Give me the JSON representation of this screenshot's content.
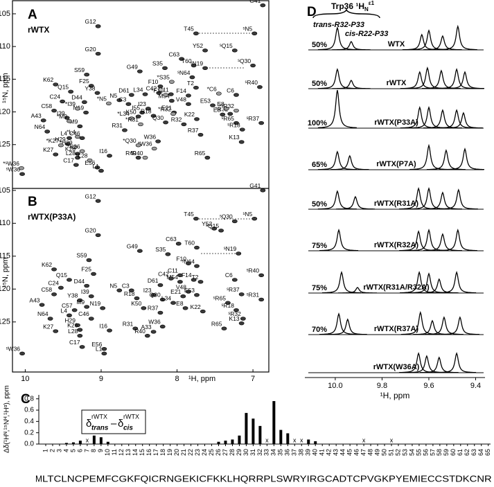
{
  "chart_data": [
    {
      "type": "hsqc",
      "label": "A",
      "subtitle": "rWTX",
      "ylabel": "¹⁵N, ppm",
      "xlim": [
        10.15,
        6.8
      ],
      "ylim": [
        103.1,
        131.7
      ],
      "yticks": [
        105,
        110,
        115,
        120,
        125
      ],
      "series": [
        {
          "color": "#e8251f",
          "labels": [
            "G41",
            "G12",
            "T45",
            "ˢN5",
            "G20",
            "Y52",
            "ˢQ15",
            "C63",
            "T60",
            "S35",
            "G49",
            "ˢQ30",
            "ˢN19",
            "ˢN64",
            "S59",
            "K62",
            "F25",
            "Y38",
            "Q15",
            "F10",
            "ˢR40",
            "T2",
            "C11",
            "F14",
            "C42",
            "L34",
            "D61",
            "N5",
            "C3",
            "D44",
            "C24",
            "C6",
            "M54",
            "V48",
            "I23",
            "N19",
            "C58",
            "E53",
            "E8",
            "ˢR32",
            "I39",
            "M9",
            "A43",
            "K50",
            "I55",
            "R18",
            "Q30",
            "R32",
            "ˢR65",
            "ˢR18",
            "ˢR37",
            "K22",
            "E21",
            "R31",
            "N64",
            "L4",
            "C46",
            "R37",
            "K13",
            "W36",
            "H29",
            "K27",
            "K26",
            "I16",
            "R40",
            "L28",
            "R65",
            "C17",
            "E56",
            "L1",
            "ˢW36"
          ],
          "x": [
            6.87,
            9.04,
            7.75,
            6.98,
            9.04,
            7.63,
            7.24,
            7.94,
            7.78,
            8.16,
            8.49,
            7.0,
            7.63,
            7.8,
            9.19,
            9.6,
            9.13,
            9.05,
            9.4,
            8.22,
            6.91,
            7.75,
            8.08,
            7.85,
            8.24,
            8.42,
            8.6,
            8.76,
            8.64,
            9.22,
            9.51,
            7.22,
            8.07,
            7.85,
            8.38,
            9.2,
            9.62,
            7.53,
            7.4,
            7.3,
            9.45,
            9.28,
            9.76,
            8.51,
            8.46,
            8.31,
            8.15,
            7.91,
            7.22,
            7.14,
            6.89,
            7.74,
            8.04,
            8.69,
            9.71,
            9.42,
            9.25,
            7.69,
            7.15,
            8.25,
            9.44,
            9.6,
            9.31,
            8.89,
            8.51,
            9.31,
            7.6,
            9.33,
            9.05,
            9.0,
            10.04
          ],
          "y": [
            103.7,
            106.9,
            108.0,
            108.0,
            111.1,
            110.6,
            110.6,
            111.9,
            112.9,
            113.3,
            113.8,
            112.9,
            113.3,
            114.7,
            114.3,
            115.8,
            116.0,
            117.1,
            116.9,
            116.1,
            116.2,
            116.3,
            117.3,
            117.5,
            117.1,
            117.3,
            117.4,
            118.2,
            118.8,
            118.5,
            118.4,
            117.4,
            118.3,
            118.8,
            119.5,
            120.1,
            119.8,
            119.0,
            120.4,
            120.3,
            120.9,
            122.2,
            121.3,
            120.7,
            120.1,
            120.6,
            121.6,
            121.9,
            121.7,
            122.7,
            121.7,
            121.1,
            120.1,
            122.8,
            123.0,
            124.0,
            124.0,
            123.5,
            124.6,
            124.5,
            124.9,
            126.5,
            126.4,
            126.7,
            127.0,
            127.0,
            127.0,
            128.1,
            128.5,
            129.0,
            129.5
          ]
        },
        {
          "color": "#2a9fd6",
          "labels": [
            "*S35",
            "*F10",
            "*C6",
            "*I39",
            "*N5",
            "E8",
            "*ˢR32",
            "*M9",
            "*L34",
            "*R32",
            "*R31",
            "*W36",
            "*Q30",
            "*H29",
            "*L4",
            "*K27",
            "*K26",
            "*R40",
            "*L28",
            "*ˢW36"
          ],
          "x": [
            8.07,
            8.15,
            7.45,
            9.31,
            8.9,
            7.35,
            7.22,
            9.42,
            8.6,
            8.05,
            8.48,
            8.3,
            8.51,
            9.35,
            9.31,
            9.53,
            9.25,
            8.42,
            9.15,
            10.05
          ],
          "y": [
            115.4,
            117.4,
            117.2,
            119.5,
            118.7,
            119.5,
            119.8,
            121.4,
            121.0,
            120.3,
            121.9,
            125.6,
            125.1,
            125.4,
            123.8,
            125.1,
            126.0,
            127.0,
            127.4,
            128.6
          ]
        }
      ]
    },
    {
      "type": "hsqc",
      "label": "B",
      "subtitle": "rWTX(P33A)",
      "xlabel": "¹H, ppm",
      "ylabel": "¹⁵N, ppm",
      "xlim": [
        10.15,
        6.8
      ],
      "ylim": [
        104.7,
        132.4
      ],
      "xticks": [
        10,
        9,
        8,
        7
      ],
      "yticks": [
        105,
        110,
        115,
        120,
        125
      ],
      "series": [
        {
          "color": "#111111",
          "labels": [
            "G41",
            "G12",
            "T45",
            "ˢN5",
            "G20",
            "Y52",
            "ˢQ30",
            "ˢQ15",
            "C63",
            "T60",
            "G49",
            "S35",
            "ˢN19",
            "S59",
            "ˢN64",
            "F10",
            "K62",
            "F25",
            "ˢR40",
            "C6",
            "F14",
            "T2",
            "C11",
            "M54",
            "C42",
            "Q15",
            "D61",
            "D44",
            "N5",
            "C3",
            "C24",
            "V48",
            "ˢR37",
            "E53",
            "C58",
            "Y38",
            "I39",
            "R18",
            "I23",
            "Q30",
            "L34",
            "E21",
            "ˢR31",
            "ˢR65",
            "A43",
            "N19",
            "M9",
            "R37",
            "E8",
            "K22",
            "ˢR18",
            "ˢR32",
            "K50",
            "N64",
            "L4",
            "C57",
            "C46",
            "K13",
            "W36",
            "R31",
            "R65",
            "H29",
            "A33",
            "I16",
            "K27",
            "K26",
            "R40",
            "L28",
            "C17",
            "E56",
            "L1",
            "ˢW36"
          ],
          "x": [
            6.87,
            9.04,
            7.75,
            6.98,
            9.04,
            7.51,
            7.24,
            7.42,
            7.98,
            7.74,
            8.49,
            8.12,
            7.19,
            9.16,
            7.74,
            7.85,
            9.62,
            9.1,
            6.89,
            7.24,
            7.78,
            7.69,
            7.96,
            7.96,
            8.08,
            9.42,
            8.22,
            9.19,
            8.76,
            8.6,
            9.53,
            7.85,
            7.15,
            7.74,
            9.62,
            9.28,
            9.13,
            8.53,
            8.31,
            8.19,
            8.05,
            7.92,
            6.89,
            7.33,
            9.78,
            8.98,
            9.19,
            8.22,
            7.89,
            7.66,
            7.22,
            7.13,
            8.44,
            9.67,
            9.42,
            9.35,
            9.13,
            7.15,
            8.19,
            8.55,
            7.38,
            9.31,
            8.31,
            8.89,
            9.6,
            9.28,
            8.39,
            9.28,
            9.25,
            8.96,
            8.96,
            10.04
          ],
          "y": [
            105.0,
            106.6,
            109.3,
            109.3,
            111.8,
            110.8,
            109.7,
            111.1,
            113.1,
            113.7,
            114.2,
            114.7,
            114.6,
            115.6,
            116.5,
            116.1,
            117.0,
            117.7,
            117.9,
            118.6,
            118.6,
            118.9,
            117.9,
            118.9,
            118.4,
            118.6,
            119.4,
            119.5,
            120.2,
            120.2,
            119.8,
            120.4,
            120.8,
            120.9,
            120.8,
            121.7,
            121.1,
            121.4,
            120.9,
            121.6,
            122.1,
            121.1,
            121.6,
            122.1,
            122.4,
            122.9,
            122.7,
            123.6,
            122.9,
            123.4,
            123.2,
            124.5,
            122.9,
            124.5,
            124.0,
            123.2,
            124.5,
            125.2,
            125.7,
            126.0,
            126.0,
            125.5,
            126.5,
            126.3,
            126.4,
            126.2,
            127.1,
            127.1,
            128.8,
            129.1,
            129.8,
            129.8
          ]
        }
      ]
    },
    {
      "type": "bar",
      "label": "C",
      "ylabel": "Δδ(¹Hᴺ,¹⁵Nᴴ,¹Hᵅ), ppm",
      "color": "#000000",
      "legend_formula": [
        {
          "symbol": "δ",
          "sub": "trans",
          "sup": "rWTX"
        },
        {
          "symbol": "–"
        },
        {
          "symbol": "δ",
          "sub": "cis",
          "sup": "rWTX"
        }
      ],
      "ylim": [
        0,
        0.87
      ],
      "yticks": [
        {
          "value": 0,
          "label": "0.0"
        },
        0.2,
        0.4,
        0.6,
        0.8
      ],
      "categories": [
        "1",
        "2",
        "3",
        "4",
        "5",
        "6",
        "7",
        "8",
        "9",
        "10",
        "11",
        "12",
        "13",
        "14",
        "15",
        "16",
        "17",
        "18",
        "19",
        "20",
        "21",
        "22",
        "23",
        "24",
        "25",
        "26",
        "27",
        "28",
        "29",
        "30",
        "31",
        "32",
        "33",
        "34",
        "35",
        "36",
        "37",
        "38",
        "39",
        "40",
        "41",
        "42",
        "43",
        "44",
        "45",
        "46",
        "47",
        "48",
        "49",
        "50",
        "51",
        "52",
        "53",
        "54",
        "55",
        "56",
        "57",
        "58",
        "59",
        "60",
        "61",
        "62",
        "63",
        "64",
        "65"
      ],
      "values": [
        null,
        null,
        null,
        0.02,
        0.03,
        0.06,
        null,
        0.15,
        0.12,
        0.04,
        null,
        null,
        null,
        null,
        null,
        null,
        null,
        null,
        null,
        null,
        null,
        null,
        null,
        null,
        null,
        0.04,
        0.06,
        0.08,
        0.15,
        0.55,
        0.45,
        0.32,
        null,
        0.76,
        0.25,
        0.19,
        null,
        null,
        0.08,
        0.05,
        null,
        null,
        null,
        null,
        null,
        null,
        null,
        null,
        null,
        null,
        null,
        null,
        null,
        null,
        null,
        null,
        null,
        null,
        null,
        null,
        null,
        null,
        null,
        null,
        null
      ],
      "value_labels": [
        null,
        null,
        null,
        null,
        null,
        null,
        "x",
        null,
        null,
        null,
        null,
        null,
        null,
        null,
        null,
        null,
        null,
        null,
        null,
        null,
        null,
        null,
        null,
        null,
        null,
        null,
        null,
        null,
        null,
        null,
        null,
        null,
        "x",
        null,
        null,
        null,
        "x",
        "x",
        null,
        null,
        null,
        null,
        null,
        null,
        null,
        null,
        "x",
        null,
        null,
        null,
        "x",
        null,
        null,
        null,
        null,
        null,
        null,
        null,
        null,
        null,
        null,
        null,
        null,
        null,
        null
      ],
      "highlight": {
        "index": 32,
        "color": "#e8251f"
      },
      "sequence": [
        "M",
        "LTCLNCPEMFCGKFQICRNGEKICFKKLHQRR",
        "P",
        "LSWRYIRGCADTCPVGKPYEMIECCSTDKCNR"
      ],
      "sequence_colors": [
        "#888888",
        "#000000",
        "#e8251f",
        "#000000"
      ]
    },
    {
      "type": "spectra",
      "label": "D",
      "header": {
        "text": "Trp36 ¹H",
        "sub": "N",
        "sup": "ε1"
      },
      "annotations": [
        "trans-R32-P33",
        "cis-R22-P33"
      ],
      "xlabel": "¹H, ppm",
      "xlim": [
        10.13,
        9.36
      ],
      "xticks": [
        {
          "value": 10,
          "label": "10.0"
        },
        9.8,
        9.6,
        9.4
      ],
      "intensity_lim": [
        0,
        60
      ],
      "color": "#000000",
      "spectra": [
        {
          "name": "WTX",
          "scale": "50%",
          "x": [
            9.991,
            9.932,
            9.63,
            9.6,
            9.541,
            9.476
          ],
          "values": [
            32,
            12,
            22,
            28,
            20,
            34
          ]
        },
        {
          "name": "rWTX",
          "scale": "50%",
          "x": [
            9.991,
            9.932,
            9.639,
            9.606,
            9.547,
            9.481,
            9.446
          ],
          "values": [
            28,
            12,
            24,
            30,
            26,
            28,
            24
          ]
        },
        {
          "name": "rWTX(P33A)",
          "scale": "100%",
          "x": [
            9.991,
            9.639,
            9.6,
            9.541,
            9.481,
            9.452
          ],
          "values": [
            55,
            30,
            30,
            26,
            26,
            22
          ]
        },
        {
          "name": "rWTX(P7A)",
          "scale": "65%",
          "x": [
            9.991,
            9.938,
            9.6,
            9.526,
            9.446
          ],
          "values": [
            26,
            20,
            35,
            28,
            30
          ]
        },
        {
          "name": "rWTX(R31A)",
          "scale": "50%",
          "x": [
            9.991,
            9.914,
            9.644,
            9.6,
            9.541,
            9.473
          ],
          "values": [
            26,
            18,
            30,
            30,
            24,
            28
          ]
        },
        {
          "name": "rWTX(R32A)",
          "scale": "75%",
          "x": [
            9.985,
            9.644,
            9.6,
            9.541,
            9.476
          ],
          "values": [
            30,
            28,
            30,
            24,
            30
          ]
        },
        {
          "name": "rWTX(R31A/R32A)",
          "scale": "75%",
          "x": [
            9.973,
            9.905,
            9.641,
            9.6,
            9.556,
            9.481
          ],
          "values": [
            30,
            8,
            30,
            28,
            20,
            30
          ]
        },
        {
          "name": "rWTX(R37A)",
          "scale": "70%",
          "x": [
            9.985,
            9.947,
            9.636,
            9.585,
            9.535,
            9.467
          ],
          "values": [
            30,
            22,
            32,
            20,
            25,
            25
          ]
        },
        {
          "name": "rWTX(W36A)",
          "scale": "",
          "x": [
            9.644,
            9.609,
            9.556,
            9.481
          ],
          "values": [
            28,
            24,
            22,
            28
          ]
        }
      ]
    }
  ]
}
